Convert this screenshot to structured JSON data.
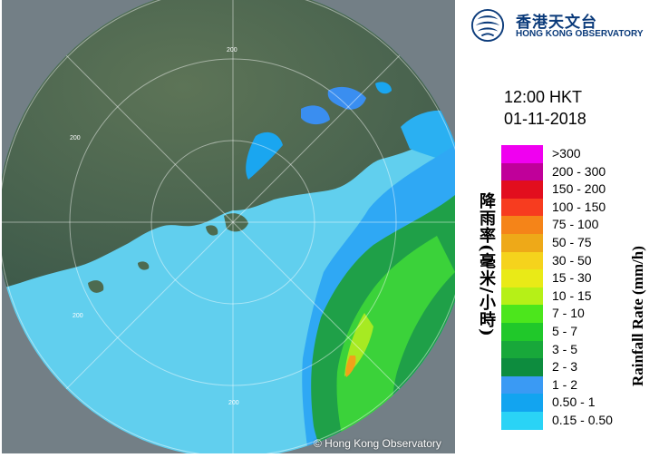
{
  "header": {
    "logo_zh": "香港天文台",
    "logo_en": "HONG KONG OBSERVATORY"
  },
  "timestamp": {
    "time": "12:00 HKT",
    "date": "01-11-2018"
  },
  "map": {
    "range_ring_labels": [
      "200",
      "200",
      "200",
      "200"
    ],
    "copyright": "© Hong Kong Observatory",
    "colors": {
      "sea_coverage": "#61cfee",
      "land": "#4e6a52",
      "outside": "#737f86"
    }
  },
  "legend": {
    "title_zh": "降雨率(毫米/小時)",
    "title_en": "Rainfall Rate (mm/h)",
    "items": [
      {
        "label": ">300",
        "color": "#f000f0"
      },
      {
        "label": "200 - 300",
        "color": "#c0009a"
      },
      {
        "label": "150 - 200",
        "color": "#e20e1e"
      },
      {
        "label": "100 - 150",
        "color": "#f73c1f"
      },
      {
        "label": "75 - 100",
        "color": "#f58418"
      },
      {
        "label": "50 - 75",
        "color": "#eea918"
      },
      {
        "label": "30 - 50",
        "color": "#f5d31c"
      },
      {
        "label": "15 - 30",
        "color": "#e9ea17"
      },
      {
        "label": "10 - 15",
        "color": "#b6f017"
      },
      {
        "label": "7 - 10",
        "color": "#4ce61c"
      },
      {
        "label": "5 - 7",
        "color": "#20c82a"
      },
      {
        "label": "3 - 5",
        "color": "#18a83a"
      },
      {
        "label": "2 - 3",
        "color": "#0d8c3e"
      },
      {
        "label": "1 - 2",
        "color": "#3a9af4"
      },
      {
        "label": "0.50 - 1",
        "color": "#12a4f0"
      },
      {
        "label": "0.15 - 0.50",
        "color": "#2ad3f6"
      }
    ]
  }
}
